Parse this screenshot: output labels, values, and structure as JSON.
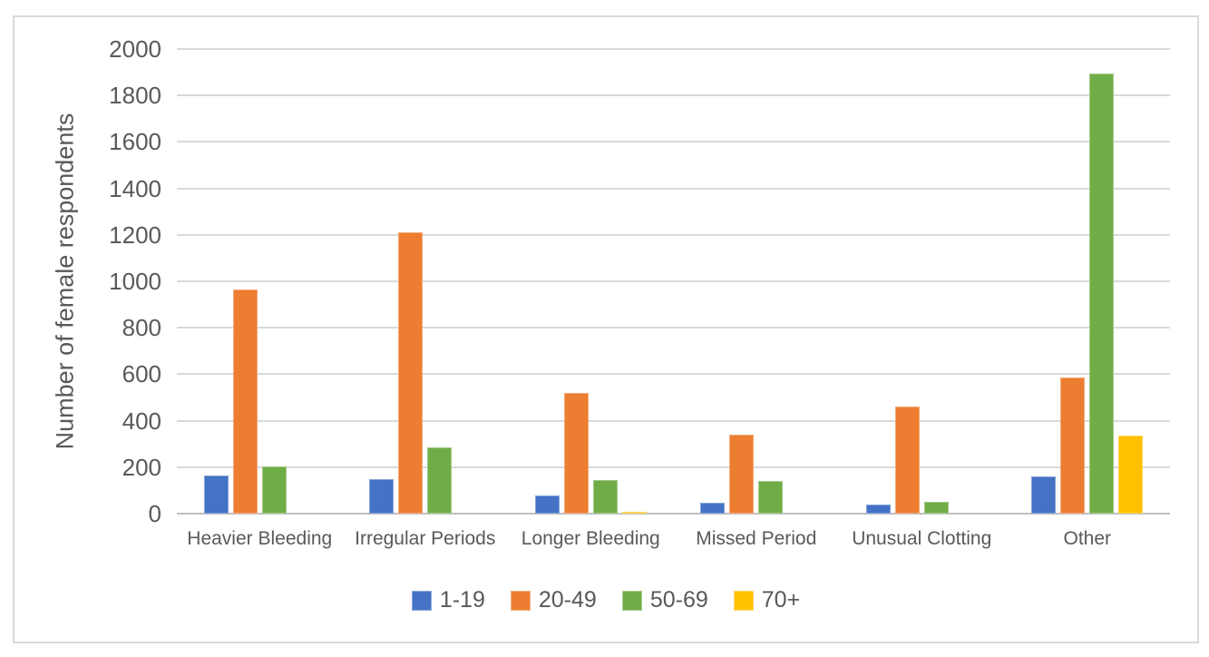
{
  "chart_data": {
    "type": "bar",
    "title": "",
    "xlabel": "",
    "ylabel": "Number of female respondents",
    "ylim": [
      0,
      2000
    ],
    "ytick_step": 200,
    "yticks": [
      0,
      200,
      400,
      600,
      800,
      1000,
      1200,
      1400,
      1600,
      1800,
      2000
    ],
    "grid": true,
    "legend_position": "bottom",
    "categories": [
      "Heavier Bleeding",
      "Irregular Periods",
      "Longer Bleeding",
      "Missed Period",
      "Unusual Clotting",
      "Other"
    ],
    "series": [
      {
        "name": "1-19",
        "color": "#4472C4",
        "values": [
          165,
          150,
          80,
          45,
          40,
          160
        ]
      },
      {
        "name": "20-49",
        "color": "#ED7D31",
        "values": [
          965,
          1210,
          520,
          340,
          460,
          585
        ]
      },
      {
        "name": "50-69",
        "color": "#70AD47",
        "values": [
          205,
          285,
          145,
          140,
          50,
          1895
        ]
      },
      {
        "name": "70+",
        "color": "#FFC000",
        "values": [
          0,
          0,
          8,
          0,
          0,
          335
        ]
      }
    ]
  },
  "colors": {
    "text": "#595959",
    "gridline": "#D9D9D9",
    "axis_baseline": "#BFBFBF",
    "frame_border": "#D9D9D9",
    "background": "#FFFFFF"
  }
}
